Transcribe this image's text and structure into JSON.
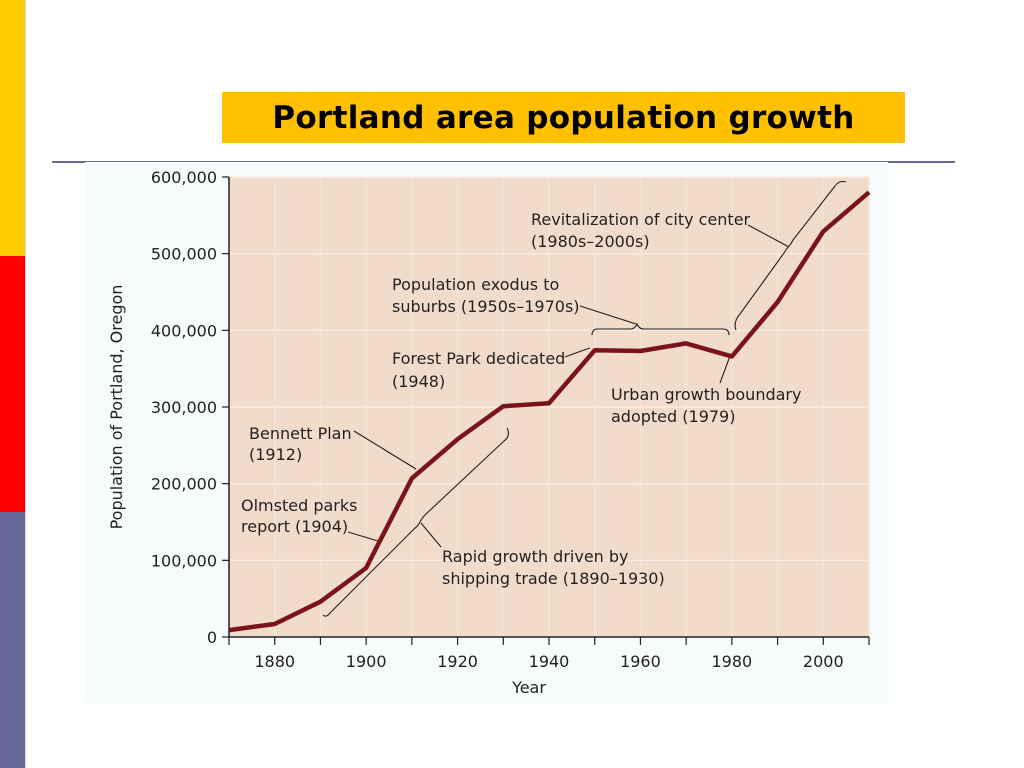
{
  "slide": {
    "title": "Portland area population growth",
    "colors": {
      "accent_yellow": "#ffcc00",
      "accent_red": "#ff0000",
      "accent_blue": "#666699",
      "title_bg": "#ffc000",
      "plot_bg": "#f1dccb",
      "line": "#7a1419"
    }
  },
  "chart_data": {
    "type": "line",
    "title": "Portland area population growth",
    "xlabel": "Year",
    "ylabel": "Population of Portland, Oregon",
    "x": [
      1870,
      1880,
      1890,
      1900,
      1910,
      1920,
      1930,
      1940,
      1950,
      1960,
      1970,
      1980,
      1990,
      2000,
      2010
    ],
    "series": [
      {
        "name": "Population of Portland, Oregon",
        "values": [
          9000,
          17000,
          46000,
          90000,
          207000,
          258000,
          301000,
          305000,
          374000,
          373000,
          383000,
          366000,
          437000,
          529000,
          580000
        ]
      }
    ],
    "xlim": [
      1870,
      2010
    ],
    "ylim": [
      0,
      600000
    ],
    "x_ticks": [
      "1880",
      "1900",
      "1920",
      "1940",
      "1960",
      "1980",
      "2000"
    ],
    "y_ticks": [
      "0",
      "100,000",
      "200,000",
      "300,000",
      "400,000",
      "500,000",
      "600,000"
    ],
    "grid": true,
    "legend": null,
    "annotations": [
      {
        "text_lines": [
          "Revitalization of city center",
          "(1980s–2000s)"
        ],
        "type": "bracket",
        "range": [
          1980,
          2005
        ]
      },
      {
        "text_lines": [
          "Population exodus to",
          "suburbs (1950s–1970s)"
        ],
        "type": "bracket",
        "range": [
          1950,
          1980
        ]
      },
      {
        "text_lines": [
          "Forest Park dedicated",
          "(1948)"
        ],
        "type": "pointer",
        "x": 1948
      },
      {
        "text_lines": [
          "Urban growth boundary",
          "adopted (1979)"
        ],
        "type": "pointer",
        "x": 1979
      },
      {
        "text_lines": [
          "Bennett Plan",
          "(1912)"
        ],
        "type": "pointer",
        "x": 1912
      },
      {
        "text_lines": [
          "Olmsted parks",
          "report (1904)"
        ],
        "type": "pointer",
        "x": 1904
      },
      {
        "text_lines": [
          "Rapid growth driven by",
          "shipping trade (1890–1930)"
        ],
        "type": "bracket",
        "range": [
          1890,
          1930
        ]
      }
    ]
  }
}
